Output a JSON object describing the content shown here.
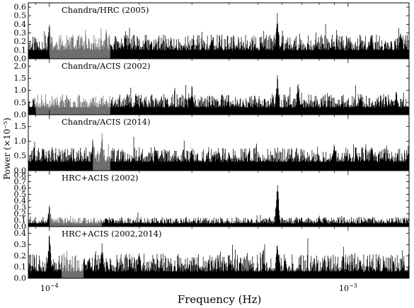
{
  "chart_data": {
    "type": "line",
    "xlabel": "Frequency (Hz)",
    "ylabel": "Power (×10⁻⁵)",
    "xscale": "log",
    "xlim": [
      8.5e-05,
      0.0016
    ],
    "x_ticks": [
      {
        "value": 0.0001,
        "mantissa": "10",
        "exp": "−4"
      },
      {
        "value": 0.001,
        "mantissa": "10",
        "exp": "−3"
      }
    ],
    "panels": [
      {
        "title": "Chandra/HRC (2005)",
        "ylim": [
          0,
          0.65
        ],
        "yticks": [
          "0.0",
          "0.1",
          "0.2",
          "0.3",
          "0.4",
          "0.5",
          "0.6"
        ],
        "ytick_values": [
          0,
          0.1,
          0.2,
          0.3,
          0.4,
          0.5,
          0.6
        ],
        "base": 0.1,
        "noise": 0.18,
        "seed": 11,
        "grey_band": [
          0.0001,
          0.00016
        ],
        "peaks": [
          [
            0.0001,
            0.48
          ],
          [
            0.000155,
            0.36
          ],
          [
            0.00018,
            0.34
          ],
          [
            0.00058,
            0.6
          ],
          [
            0.00035,
            0.3
          ],
          [
            0.0012,
            0.33
          ],
          [
            0.0015,
            0.4
          ]
        ]
      },
      {
        "title": "Chandra/ACIS (2002)",
        "ylim": [
          0,
          2.3
        ],
        "yticks": [
          "0.0",
          "0.5",
          "1.0",
          "1.5",
          "2.0"
        ],
        "ytick_values": [
          0,
          0.5,
          1.0,
          1.5,
          2.0
        ],
        "base": 0.3,
        "noise": 0.55,
        "seed": 23,
        "grey_band": [
          9e-05,
          0.00016
        ],
        "peaks": [
          [
            0.000195,
            1.0
          ],
          [
            0.0003,
            1.3
          ],
          [
            0.00058,
            1.8
          ],
          [
            0.00068,
            1.55
          ],
          [
            0.0011,
            1.05
          ],
          [
            0.00145,
            1.15
          ]
        ]
      },
      {
        "title": "Chandra/ACIS (2014)",
        "ylim": [
          0,
          1.9
        ],
        "yticks": [
          "0.0",
          "0.5",
          "1.0",
          "1.5"
        ],
        "ytick_values": [
          0,
          0.5,
          1.0,
          1.5
        ],
        "base": 0.3,
        "noise": 0.5,
        "seed": 37,
        "grey_band": [
          0.00014,
          0.00016
        ],
        "peaks": [
          [
            0.00014,
            1.35
          ],
          [
            0.00015,
            1.3
          ],
          [
            0.0003,
            0.9
          ],
          [
            0.0004,
            0.8
          ],
          [
            0.0009,
            1.0
          ],
          [
            0.0012,
            1.05
          ]
        ]
      },
      {
        "title": "HRC+ACIS (2002)",
        "ylim": [
          0,
          0.87
        ],
        "yticks": [
          "0.0",
          "0.1",
          "0.2",
          "0.3",
          "0.4",
          "0.5",
          "0.6",
          "0.7",
          "0.8"
        ],
        "ytick_values": [
          0,
          0.1,
          0.2,
          0.3,
          0.4,
          0.5,
          0.6,
          0.7,
          0.8
        ],
        "base": 0.05,
        "noise": 0.1,
        "seed": 53,
        "grey_band": [
          0.0001,
          0.00015
        ],
        "peaks": [
          [
            0.0001,
            0.38
          ],
          [
            0.00058,
            0.73
          ],
          [
            0.000155,
            0.16
          ],
          [
            0.0008,
            0.18
          ]
        ]
      },
      {
        "title": "HRC+ACIS (2002,2014)",
        "ylim": [
          0,
          0.46
        ],
        "yticks": [
          "0.0",
          "0.1",
          "0.2",
          "0.3",
          "0.4"
        ],
        "ytick_values": [
          0,
          0.1,
          0.2,
          0.3,
          0.4
        ],
        "base": 0.06,
        "noise": 0.16,
        "seed": 71,
        "grey_band": [
          0.00011,
          0.00013
        ],
        "peaks": [
          [
            0.0001,
            0.43
          ],
          [
            0.00015,
            0.32
          ],
          [
            0.00058,
            0.4
          ],
          [
            0.0002,
            0.28
          ],
          [
            0.0011,
            0.17
          ]
        ]
      }
    ]
  }
}
